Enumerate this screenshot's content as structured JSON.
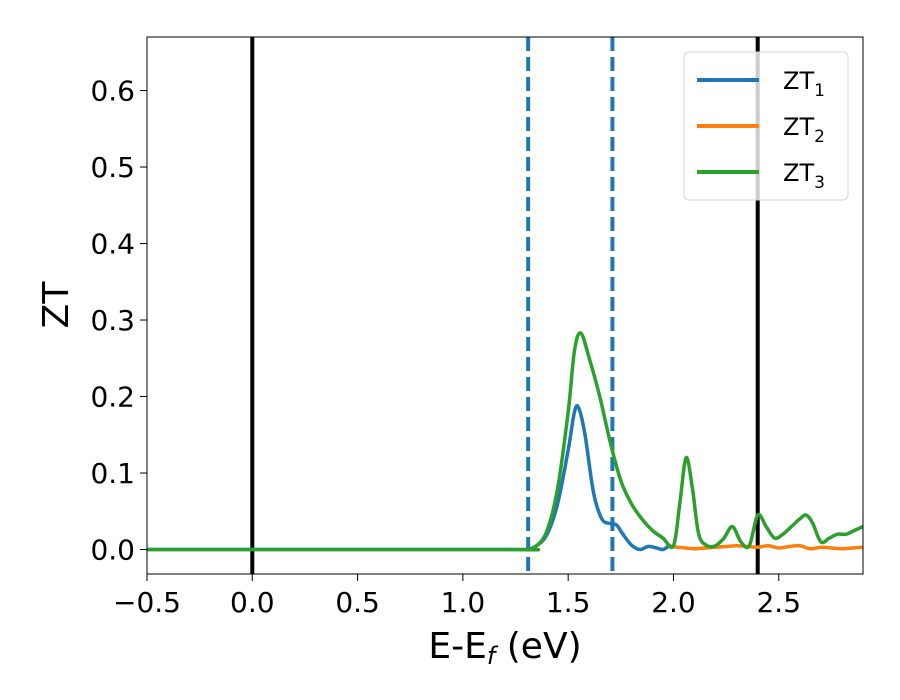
{
  "chart_data": {
    "type": "line",
    "xlabel": "E-E",
    "xlabel_sub": "f",
    "xlabel_unit": " (eV)",
    "ylabel": "ZT",
    "xlim": [
      -0.5,
      2.9
    ],
    "ylim": [
      -0.032,
      0.67
    ],
    "xticks": [
      -0.5,
      0.0,
      0.5,
      1.0,
      1.5,
      2.0,
      2.5
    ],
    "xtick_labels": [
      "−0.5",
      "0.0",
      "0.5",
      "1.0",
      "1.5",
      "2.0",
      "2.5"
    ],
    "yticks": [
      0.0,
      0.1,
      0.2,
      0.3,
      0.4,
      0.5,
      0.6
    ],
    "ytick_labels": [
      "0.0",
      "0.1",
      "0.2",
      "0.3",
      "0.4",
      "0.5",
      "0.6"
    ],
    "grid": false,
    "legend_position": "top-right",
    "vlines_solid": [
      0.0,
      2.4
    ],
    "vlines_dashed": [
      1.31,
      1.71
    ],
    "colors": {
      "zt1": "#1f77b4",
      "zt2": "#ff7f0e",
      "zt3": "#2ca02c",
      "solid_vline": "#000000",
      "dashed_vline": "#1f77b4"
    },
    "series": [
      {
        "name": "ZT",
        "sub": "1",
        "color_key": "zt1",
        "x": [
          -0.5,
          1.2,
          1.3,
          1.35,
          1.4,
          1.45,
          1.5,
          1.53,
          1.55,
          1.58,
          1.62,
          1.66,
          1.7,
          1.73,
          1.76,
          1.8,
          1.84,
          1.88,
          1.92,
          1.95,
          1.98
        ],
        "y": [
          0.0,
          0.0,
          0.0,
          0.005,
          0.02,
          0.06,
          0.13,
          0.18,
          0.185,
          0.15,
          0.075,
          0.04,
          0.034,
          0.032,
          0.02,
          0.006,
          0.0,
          0.004,
          0.002,
          0.0,
          0.005
        ]
      },
      {
        "name": "ZT",
        "sub": "2",
        "color_key": "zt2",
        "x": [
          1.98,
          2.02,
          2.06,
          2.1,
          2.15,
          2.2,
          2.25,
          2.3,
          2.35,
          2.4,
          2.45,
          2.5,
          2.55,
          2.6,
          2.65,
          2.7,
          2.75,
          2.8,
          2.85,
          2.9
        ],
        "y": [
          0.005,
          0.003,
          0.002,
          0.001,
          0.002,
          0.003,
          0.004,
          0.005,
          0.004,
          0.003,
          0.005,
          0.002,
          0.004,
          0.005,
          0.001,
          0.003,
          0.002,
          0.001,
          0.002,
          0.003
        ]
      },
      {
        "name": "ZT",
        "sub": "3",
        "color_key": "zt3",
        "x": [
          -0.5,
          1.2,
          1.3,
          1.35,
          1.4,
          1.45,
          1.5,
          1.53,
          1.56,
          1.6,
          1.65,
          1.7,
          1.75,
          1.8,
          1.85,
          1.9,
          1.95,
          2.0,
          2.03,
          2.06,
          2.09,
          2.12,
          2.16,
          2.2,
          2.24,
          2.28,
          2.32,
          2.36,
          2.4,
          2.44,
          2.48,
          2.52,
          2.56,
          2.6,
          2.63,
          2.66,
          2.7,
          2.74,
          2.78,
          2.82,
          2.86,
          2.9
        ],
        "y": [
          0.0,
          0.0,
          0.0,
          0.005,
          0.025,
          0.08,
          0.18,
          0.26,
          0.283,
          0.25,
          0.2,
          0.14,
          0.09,
          0.06,
          0.04,
          0.025,
          0.015,
          0.005,
          0.06,
          0.12,
          0.08,
          0.02,
          0.005,
          0.005,
          0.015,
          0.03,
          0.01,
          0.005,
          0.045,
          0.03,
          0.015,
          0.02,
          0.03,
          0.04,
          0.045,
          0.035,
          0.01,
          0.015,
          0.02,
          0.02,
          0.025,
          0.03
        ]
      }
    ]
  }
}
